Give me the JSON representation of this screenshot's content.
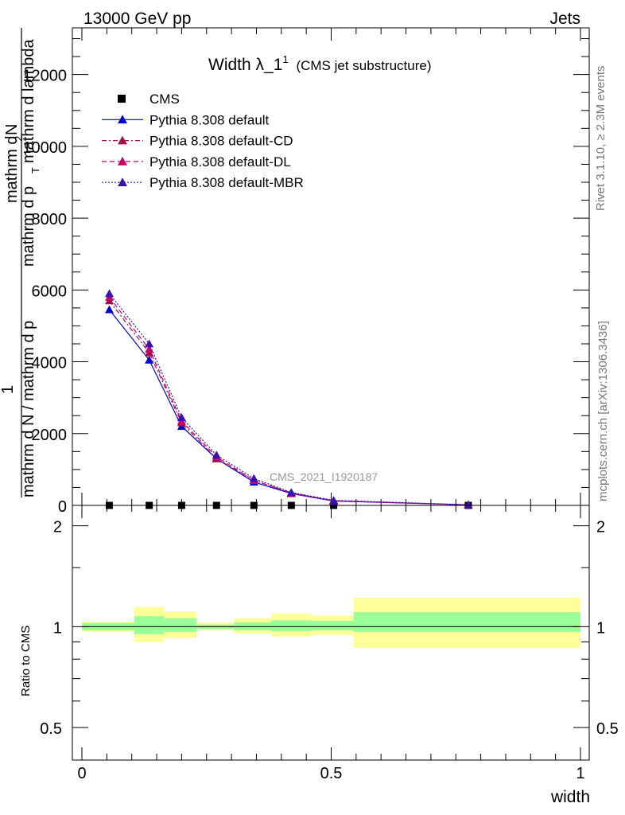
{
  "header": {
    "left": "13000 GeV pp",
    "right": "Jets"
  },
  "side_text": {
    "rivet": "Rivet 3.1.10, ≥ 2.3M events",
    "mcplots": "mcplots.cern.ch [arXiv:1306.3436]"
  },
  "chart_data": {
    "type": "line",
    "title": "Width λ_1",
    "title_superscript": "1",
    "subtitle": "(CMS jet substructure)",
    "analysis_label": "CMS_2021_I1920187",
    "ylabel_main": {
      "numerator_top": "1",
      "numerator_frac_top": "mathrm d",
      "numerator_superscript": "2",
      "numerator_rest": "N",
      "denominator_left": "mathrm d N / mathrm d p",
      "denominator_right": "mathrm d p",
      "denominator_sub": "T",
      "denominator_end": "mathrm d lambda"
    },
    "ylabel_main_lines": [
      "1",
      "mathrm d N / mathrm d p",
      "mathrm d",
      "N",
      "mathrm d p",
      "T",
      "mathrm d lambda"
    ],
    "ylabel_ratio": "Ratio to CMS",
    "xlabel": "width",
    "xlim": [
      0,
      1
    ],
    "ylim": [
      0,
      13300
    ],
    "x_ticks": [
      0,
      0.5,
      1
    ],
    "x_tick_labels": [
      "0",
      "0.5",
      "1"
    ],
    "y_ticks": [
      0,
      2000,
      4000,
      6000,
      8000,
      10000,
      12000
    ],
    "y_tick_labels": [
      "0",
      "2000",
      "4000",
      "6000",
      "8000",
      "10000",
      "12000"
    ],
    "ratio_ylim_log": [
      0.4,
      2.3
    ],
    "ratio_ticks": [
      0.5,
      1,
      2
    ],
    "ratio_tick_labels": [
      "0.5",
      "1",
      "2"
    ],
    "legend_position": "top-left",
    "x": [
      0.055,
      0.135,
      0.2,
      0.27,
      0.345,
      0.42,
      0.505,
      0.775
    ],
    "series": [
      {
        "name": "CMS",
        "style": "marker",
        "marker": "square",
        "color": "#000000",
        "values": [
          0,
          0,
          0,
          0,
          0,
          0,
          0,
          0
        ]
      },
      {
        "name": "Pythia 8.308 default",
        "style": "solid",
        "marker": "triangle",
        "color": "#0000cc",
        "values": [
          5450,
          4050,
          2200,
          1300,
          650,
          330,
          120,
          15
        ]
      },
      {
        "name": "Pythia 8.308 default-CD",
        "style": "dashdot",
        "marker": "triangle",
        "color": "#a0104a",
        "values": [
          5700,
          4250,
          2300,
          1300,
          700,
          340,
          130,
          15
        ]
      },
      {
        "name": "Pythia 8.308 default-DL",
        "style": "dashed",
        "marker": "triangle",
        "color": "#c8006e",
        "values": [
          5800,
          4350,
          2350,
          1350,
          700,
          350,
          130,
          15
        ]
      },
      {
        "name": "Pythia 8.308 default-MBR",
        "style": "dotted",
        "marker": "triangle",
        "color": "#3a10b0",
        "values": [
          5900,
          4500,
          2450,
          1400,
          750,
          360,
          140,
          18
        ]
      }
    ],
    "ratio_bands": [
      {
        "x0": 0.0,
        "x1": 0.105,
        "green": [
          0.975,
          1.025
        ],
        "yellow": [
          0.965,
          1.035
        ]
      },
      {
        "x0": 0.105,
        "x1": 0.165,
        "green": [
          0.95,
          1.075
        ],
        "yellow": [
          0.9,
          1.145
        ]
      },
      {
        "x0": 0.165,
        "x1": 0.23,
        "green": [
          0.965,
          1.06
        ],
        "yellow": [
          0.925,
          1.11
        ]
      },
      {
        "x0": 0.23,
        "x1": 0.305,
        "green": [
          0.985,
          1.015
        ],
        "yellow": [
          0.975,
          1.03
        ]
      },
      {
        "x0": 0.305,
        "x1": 0.38,
        "green": [
          0.975,
          1.03
        ],
        "yellow": [
          0.955,
          1.06
        ]
      },
      {
        "x0": 0.38,
        "x1": 0.46,
        "green": [
          0.97,
          1.045
        ],
        "yellow": [
          0.935,
          1.095
        ]
      },
      {
        "x0": 0.46,
        "x1": 0.545,
        "green": [
          0.975,
          1.04
        ],
        "yellow": [
          0.945,
          1.08
        ]
      },
      {
        "x0": 0.545,
        "x1": 1.0,
        "green": [
          0.965,
          1.105
        ],
        "yellow": [
          0.865,
          1.22
        ]
      }
    ],
    "colors": {
      "green": "#99ff99",
      "yellow": "#ffff99"
    }
  }
}
